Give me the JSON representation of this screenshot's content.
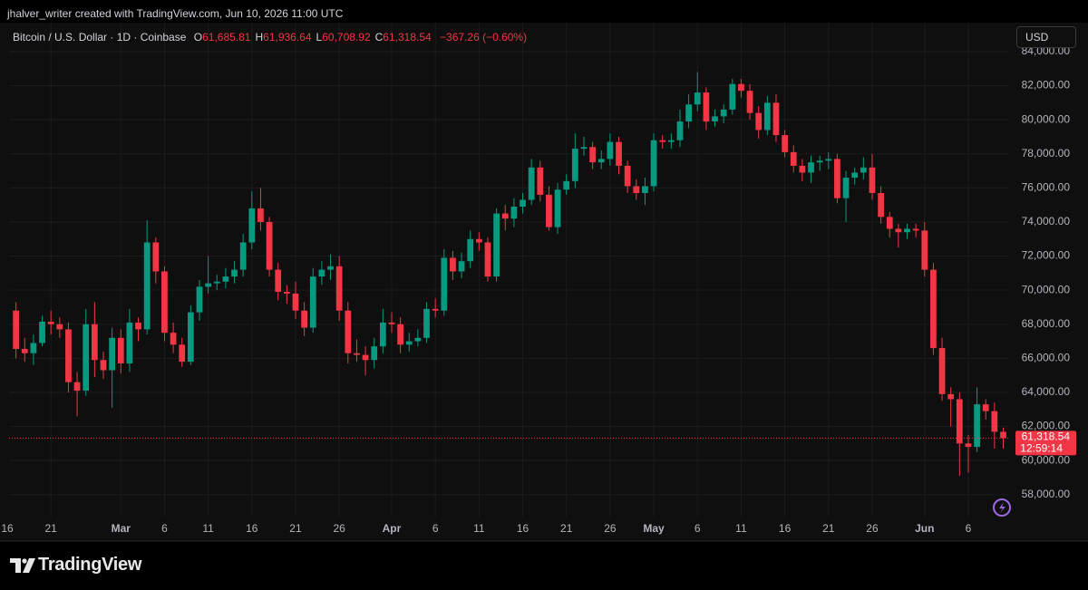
{
  "header": {
    "attribution": "jhalver_writer created with TradingView.com, Jun 10, 2026 11:00 UTC",
    "currency": "USD",
    "logo": "TradingView"
  },
  "chart_data": {
    "type": "candlestick",
    "title": "Bitcoin / U.S. Dollar · 1D · Coinbase",
    "ohlc_legend": [
      {
        "label": "O",
        "value": "61,685.81"
      },
      {
        "label": "H",
        "value": "61,936.64"
      },
      {
        "label": "L",
        "value": "60,708.92"
      },
      {
        "label": "C",
        "value": "61,318.54"
      }
    ],
    "change": "−367.26 (−0.60%)",
    "last_price_label": "61,318.54",
    "countdown": "12:59:14",
    "up_color": "#089981",
    "down_color": "#f23645",
    "grid": true,
    "x": [
      "2026-02-17",
      "2026-02-18",
      "2026-02-19",
      "2026-02-20",
      "2026-02-21",
      "2026-02-22",
      "2026-02-23",
      "2026-02-24",
      "2026-02-25",
      "2026-02-26",
      "2026-02-27",
      "2026-02-28",
      "2026-03-01",
      "2026-03-02",
      "2026-03-03",
      "2026-03-04",
      "2026-03-05",
      "2026-03-06",
      "2026-03-07",
      "2026-03-08",
      "2026-03-09",
      "2026-03-10",
      "2026-03-11",
      "2026-03-12",
      "2026-03-13",
      "2026-03-14",
      "2026-03-15",
      "2026-03-16",
      "2026-03-17",
      "2026-03-18",
      "2026-03-19",
      "2026-03-20",
      "2026-03-21",
      "2026-03-22",
      "2026-03-23",
      "2026-03-24",
      "2026-03-25",
      "2026-03-26",
      "2026-03-27",
      "2026-03-28",
      "2026-03-29",
      "2026-03-30",
      "2026-03-31",
      "2026-04-01",
      "2026-04-02",
      "2026-04-03",
      "2026-04-04",
      "2026-04-05",
      "2026-04-06",
      "2026-04-07",
      "2026-04-08",
      "2026-04-09",
      "2026-04-10",
      "2026-04-11",
      "2026-04-12",
      "2026-04-13",
      "2026-04-14",
      "2026-04-15",
      "2026-04-16",
      "2026-04-17",
      "2026-04-18",
      "2026-04-19",
      "2026-04-20",
      "2026-04-21",
      "2026-04-22",
      "2026-04-23",
      "2026-04-24",
      "2026-04-25",
      "2026-04-26",
      "2026-04-27",
      "2026-04-28",
      "2026-04-29",
      "2026-04-30",
      "2026-05-01",
      "2026-05-02",
      "2026-05-03",
      "2026-05-04",
      "2026-05-05",
      "2026-05-06",
      "2026-05-07",
      "2026-05-08",
      "2026-05-09",
      "2026-05-10",
      "2026-05-11",
      "2026-05-12",
      "2026-05-13",
      "2026-05-14",
      "2026-05-15",
      "2026-05-16",
      "2026-05-17",
      "2026-05-18",
      "2026-05-19",
      "2026-05-20",
      "2026-05-21",
      "2026-05-22",
      "2026-05-23",
      "2026-05-24",
      "2026-05-25",
      "2026-05-26",
      "2026-05-27",
      "2026-05-28",
      "2026-05-29",
      "2026-05-30",
      "2026-05-31",
      "2026-06-01",
      "2026-06-02",
      "2026-06-03",
      "2026-06-04",
      "2026-06-05",
      "2026-06-06",
      "2026-06-07",
      "2026-06-08",
      "2026-06-09",
      "2026-06-10"
    ],
    "open": [
      68800,
      66550,
      66300,
      66900,
      68150,
      68000,
      67700,
      64600,
      64100,
      68000,
      65900,
      65300,
      67200,
      65700,
      68100,
      67700,
      72800,
      71100,
      67500,
      66800,
      65800,
      68700,
      70200,
      70400,
      70500,
      70800,
      71200,
      72800,
      74800,
      74000,
      71200,
      69900,
      69800,
      68800,
      67800,
      70800,
      71200,
      71400,
      68800,
      66300,
      66200,
      65900,
      66700,
      68100,
      68000,
      66800,
      67000,
      67200,
      68900,
      68800,
      71900,
      71100,
      71700,
      73000,
      72800,
      70800,
      74500,
      74200,
      74900,
      75300,
      77200,
      75600,
      73700,
      75900,
      76400,
      78300,
      78400,
      77500,
      77700,
      78700,
      77300,
      76100,
      75700,
      76100,
      78800,
      78700,
      78800,
      79900,
      80900,
      81600,
      79900,
      80200,
      80600,
      82100,
      81700,
      80400,
      79400,
      81000,
      79100,
      78100,
      77300,
      76900,
      77500,
      77600,
      77700,
      75400,
      76600,
      76900,
      77200,
      75700,
      74300,
      73600,
      73400,
      73600,
      73500,
      71200,
      66600,
      63900,
      63600,
      61000,
      60800,
      63300,
      62900,
      61685.81
    ],
    "high": [
      69300,
      67200,
      67400,
      68500,
      68800,
      68400,
      68100,
      65200,
      68900,
      69300,
      66400,
      67800,
      67700,
      68900,
      68400,
      74100,
      73100,
      71400,
      68100,
      67200,
      69100,
      70600,
      72000,
      70900,
      71300,
      71700,
      73300,
      75800,
      76000,
      74300,
      71600,
      70300,
      70500,
      69300,
      71300,
      71700,
      72100,
      72000,
      69300,
      67100,
      66700,
      67200,
      68900,
      68700,
      68400,
      67500,
      67700,
      69300,
      69500,
      72400,
      72300,
      72200,
      73500,
      73400,
      73100,
      74800,
      75000,
      75400,
      75700,
      77700,
      77600,
      76100,
      76300,
      76800,
      79200,
      79000,
      78700,
      78200,
      79200,
      79000,
      77600,
      76500,
      76600,
      79200,
      79100,
      79200,
      80600,
      81500,
      82800,
      81900,
      80600,
      80900,
      82400,
      82400,
      82100,
      80800,
      81400,
      81500,
      79400,
      78500,
      77700,
      77900,
      77900,
      78100,
      78000,
      77000,
      77200,
      77800,
      78000,
      76100,
      74600,
      73900,
      73900,
      73900,
      74000,
      71600,
      67200,
      64300,
      64000,
      61500,
      64300,
      63600,
      63400,
      61936.64
    ],
    "low": [
      66000,
      65800,
      65600,
      66700,
      67400,
      67200,
      64000,
      62600,
      63800,
      64900,
      64800,
      63100,
      65100,
      65200,
      67000,
      67400,
      70400,
      67000,
      66300,
      65500,
      65600,
      68200,
      69800,
      70000,
      70100,
      70400,
      70800,
      72400,
      73500,
      70800,
      69400,
      69200,
      68300,
      67300,
      67500,
      70300,
      70600,
      68200,
      65700,
      65800,
      65000,
      65400,
      66300,
      67500,
      66300,
      66400,
      66700,
      66900,
      68400,
      68500,
      70600,
      70700,
      71300,
      72300,
      70500,
      70500,
      73500,
      73700,
      74500,
      75000,
      75200,
      73500,
      73300,
      75600,
      76000,
      77900,
      77100,
      77100,
      77300,
      76800,
      75700,
      75300,
      75000,
      75800,
      78300,
      78300,
      78400,
      79500,
      80500,
      79400,
      79600,
      79800,
      80300,
      81300,
      80000,
      78900,
      79100,
      78700,
      77800,
      76900,
      76400,
      76300,
      77000,
      77100,
      75100,
      74000,
      76200,
      76500,
      75300,
      73900,
      73100,
      72500,
      73000,
      73100,
      70800,
      66200,
      63500,
      62000,
      59100,
      59300,
      60500,
      62400,
      60700,
      60708.92
    ],
    "close": [
      66550,
      66300,
      66900,
      68150,
      68000,
      67700,
      64600,
      64100,
      68000,
      65900,
      65300,
      67200,
      65700,
      68100,
      67700,
      72800,
      71100,
      67500,
      66800,
      65800,
      68700,
      70200,
      70400,
      70500,
      70800,
      71200,
      72800,
      74800,
      74000,
      71200,
      69900,
      69800,
      68800,
      67800,
      70800,
      71200,
      71400,
      68800,
      66300,
      66200,
      65900,
      66700,
      68100,
      68000,
      66800,
      67000,
      67200,
      68900,
      68800,
      71900,
      71100,
      71700,
      73000,
      72800,
      70800,
      74500,
      74200,
      74900,
      75300,
      77200,
      75600,
      73700,
      75900,
      76400,
      78300,
      78400,
      77500,
      77700,
      78700,
      77300,
      76100,
      75700,
      76100,
      78800,
      78700,
      78800,
      79900,
      80900,
      81600,
      79900,
      80200,
      80600,
      82100,
      81700,
      80400,
      79400,
      81000,
      79100,
      78100,
      77300,
      76900,
      77500,
      77600,
      77700,
      75400,
      76600,
      76900,
      77200,
      75700,
      74300,
      73600,
      73400,
      73600,
      73500,
      71200,
      66600,
      63900,
      63600,
      61000,
      60800,
      63300,
      62900,
      61685.81,
      61318.54
    ],
    "xlim": [
      "2026-02-16",
      "2026-06-10"
    ],
    "xticks": [
      {
        "value": "2026-02-16",
        "label": "16"
      },
      {
        "value": "2026-02-21",
        "label": "21"
      },
      {
        "value": "2026-03-01",
        "label": "Mar"
      },
      {
        "value": "2026-03-06",
        "label": "6"
      },
      {
        "value": "2026-03-11",
        "label": "11"
      },
      {
        "value": "2026-03-16",
        "label": "16"
      },
      {
        "value": "2026-03-21",
        "label": "21"
      },
      {
        "value": "2026-03-26",
        "label": "26"
      },
      {
        "value": "2026-04-01",
        "label": "Apr"
      },
      {
        "value": "2026-04-06",
        "label": "6"
      },
      {
        "value": "2026-04-11",
        "label": "11"
      },
      {
        "value": "2026-04-16",
        "label": "16"
      },
      {
        "value": "2026-04-21",
        "label": "21"
      },
      {
        "value": "2026-04-26",
        "label": "26"
      },
      {
        "value": "2026-05-01",
        "label": "May"
      },
      {
        "value": "2026-05-06",
        "label": "6"
      },
      {
        "value": "2026-05-11",
        "label": "11"
      },
      {
        "value": "2026-05-16",
        "label": "16"
      },
      {
        "value": "2026-05-21",
        "label": "21"
      },
      {
        "value": "2026-05-26",
        "label": "26"
      },
      {
        "value": "2026-06-01",
        "label": "Jun"
      },
      {
        "value": "2026-06-06",
        "label": "6"
      }
    ],
    "ylim": [
      56710,
      85700
    ],
    "yticks": [
      {
        "value": 58000,
        "label": "58,000.00"
      },
      {
        "value": 60000,
        "label": "60,000.00"
      },
      {
        "value": 62000,
        "label": "62,000.00"
      },
      {
        "value": 64000,
        "label": "64,000.00"
      },
      {
        "value": 66000,
        "label": "66,000.00"
      },
      {
        "value": 68000,
        "label": "68,000.00"
      },
      {
        "value": 70000,
        "label": "70,000.00"
      },
      {
        "value": 72000,
        "label": "72,000.00"
      },
      {
        "value": 74000,
        "label": "74,000.00"
      },
      {
        "value": 76000,
        "label": "76,000.00"
      },
      {
        "value": 78000,
        "label": "78,000.00"
      },
      {
        "value": 80000,
        "label": "80,000.00"
      },
      {
        "value": 82000,
        "label": "82,000.00"
      },
      {
        "value": 84000,
        "label": "84,000.00"
      }
    ]
  }
}
